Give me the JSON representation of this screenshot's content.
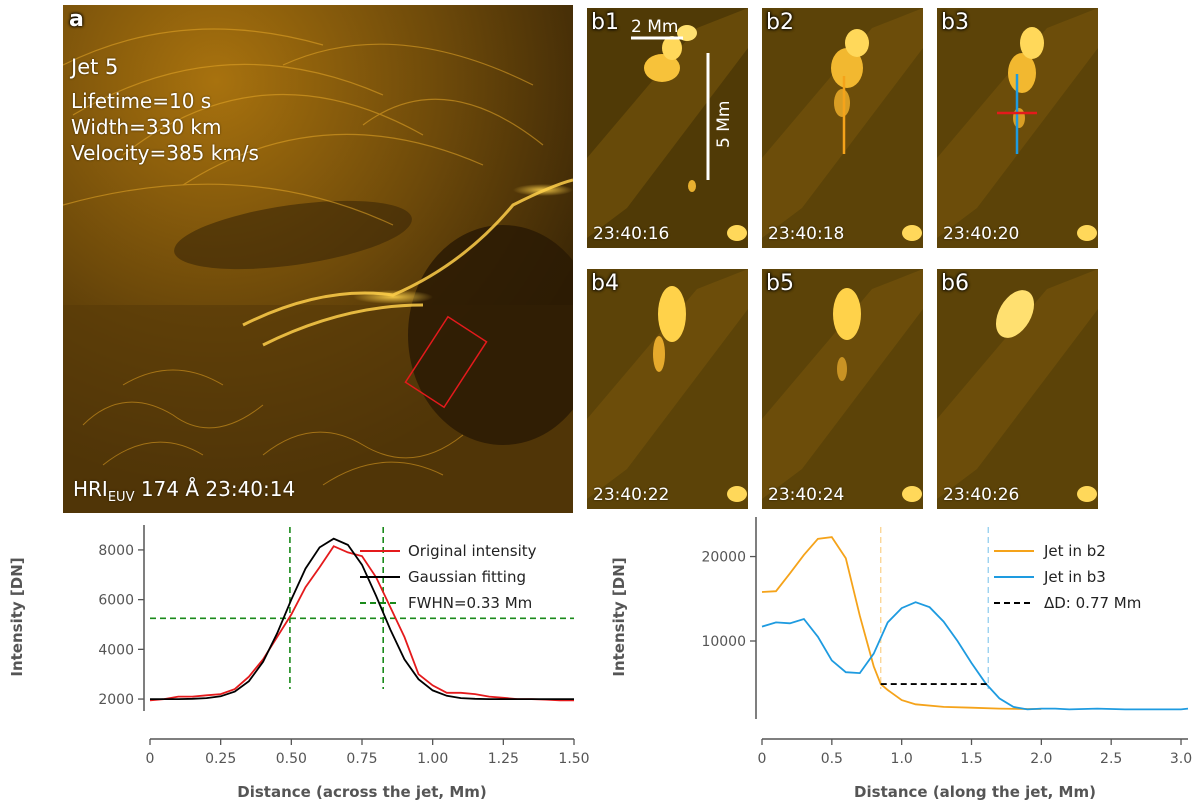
{
  "panel_a": {
    "label": "a",
    "title": "Jet 5",
    "lifetime": "Lifetime=10 s",
    "width": "Width=330 km",
    "velocity": "Velocity=385 km/s",
    "instrument_main": "HRI",
    "instrument_sub": "EUV",
    "instrument_rest": " 174 Å 23:40:14"
  },
  "thumbs": [
    {
      "label": "b1",
      "time": "23:40:16"
    },
    {
      "label": "b2",
      "time": "23:40:18"
    },
    {
      "label": "b3",
      "time": "23:40:20"
    },
    {
      "label": "b4",
      "time": "23:40:22"
    },
    {
      "label": "b5",
      "time": "23:40:24"
    },
    {
      "label": "b6",
      "time": "23:40:26"
    }
  ],
  "scalebars": {
    "horizontal": "2 Mm",
    "vertical": "5 Mm"
  },
  "colors": {
    "orange": "#f5a31a",
    "blue": "#1e9be0",
    "red": "#e41a1c",
    "green": "#1a8a1a",
    "black": "#000000",
    "solar": "#c98a12"
  },
  "chart_data": [
    {
      "type": "line",
      "xlabel": "Distance (across the jet, Mm)",
      "ylabel": "Intensity [DN]",
      "xlim": [
        0,
        1.5
      ],
      "ylim": [
        1600,
        8600
      ],
      "xticks": [
        "0",
        "0.25",
        "0.50",
        "0.75",
        "1.00",
        "1.25",
        "1.50"
      ],
      "yticks": [
        "2000",
        "4000",
        "6000",
        "8000"
      ],
      "series": [
        {
          "name": "Original intensity",
          "color": "red",
          "x": [
            0,
            0.05,
            0.1,
            0.15,
            0.2,
            0.25,
            0.3,
            0.35,
            0.4,
            0.45,
            0.5,
            0.55,
            0.6,
            0.65,
            0.7,
            0.75,
            0.8,
            0.85,
            0.9,
            0.95,
            1.0,
            1.05,
            1.1,
            1.15,
            1.2,
            1.25,
            1.3,
            1.35,
            1.4,
            1.45,
            1.5
          ],
          "y": [
            1950,
            2000,
            2100,
            2100,
            2150,
            2200,
            2400,
            2900,
            3600,
            4500,
            5400,
            6500,
            7300,
            8150,
            7900,
            7750,
            6900,
            5700,
            4500,
            3000,
            2550,
            2250,
            2250,
            2200,
            2100,
            2050,
            2000,
            2000,
            1980,
            1950,
            1950
          ]
        },
        {
          "name": "Gaussian fitting",
          "color": "black",
          "x": [
            0,
            0.05,
            0.1,
            0.15,
            0.2,
            0.25,
            0.3,
            0.35,
            0.4,
            0.45,
            0.5,
            0.55,
            0.6,
            0.65,
            0.7,
            0.75,
            0.8,
            0.85,
            0.9,
            0.95,
            1.0,
            1.05,
            1.1,
            1.15,
            1.2,
            1.25,
            1.3,
            1.35,
            1.4,
            1.45,
            1.5
          ],
          "y": [
            2000,
            2000,
            2000,
            2010,
            2040,
            2110,
            2300,
            2720,
            3500,
            4650,
            6000,
            7250,
            8100,
            8450,
            8200,
            7400,
            6150,
            4800,
            3600,
            2800,
            2350,
            2130,
            2040,
            2010,
            2000,
            2000,
            2000,
            2000,
            2000,
            2000,
            2000
          ]
        }
      ],
      "fwhm_label": "FWHN=0.33 Mm",
      "fwhm_level": 5250,
      "fwhm_x": [
        0.495,
        0.825
      ]
    },
    {
      "type": "line",
      "xlabel": "Distance (along the jet, Mm)",
      "ylabel": "Intensity [DN]",
      "xlim": [
        0,
        3.05
      ],
      "ylim": [
        1000,
        23500
      ],
      "xticks": [
        "0",
        "0.5",
        "1.0",
        "1.5",
        "2.0",
        "2.5",
        "3.0"
      ],
      "yticks": [
        "10000",
        "20000"
      ],
      "series": [
        {
          "name": "Jet in b2",
          "color": "orange",
          "x": [
            0,
            0.1,
            0.2,
            0.3,
            0.4,
            0.5,
            0.6,
            0.7,
            0.8,
            0.85,
            0.9,
            1.0,
            1.1,
            1.3,
            1.5,
            1.7,
            1.9,
            2.0
          ],
          "y": [
            15800,
            15900,
            18000,
            20200,
            22100,
            22300,
            19800,
            13000,
            7000,
            4900,
            4200,
            3000,
            2500,
            2200,
            2100,
            2000,
            1950,
            1950
          ]
        },
        {
          "name": "Jet in b3",
          "color": "blue",
          "x": [
            0,
            0.1,
            0.2,
            0.3,
            0.4,
            0.5,
            0.6,
            0.7,
            0.8,
            0.9,
            1.0,
            1.1,
            1.2,
            1.3,
            1.4,
            1.5,
            1.6,
            1.7,
            1.8,
            1.9,
            2.0,
            2.1,
            2.2,
            2.3,
            2.4,
            2.5,
            2.6,
            2.7,
            2.8,
            2.9,
            3.0,
            3.05
          ],
          "y": [
            11700,
            12200,
            12100,
            12600,
            10500,
            7700,
            6300,
            6200,
            8500,
            12200,
            13900,
            14600,
            14000,
            12300,
            10000,
            7400,
            5000,
            3200,
            2200,
            1900,
            2000,
            2000,
            1900,
            1950,
            2000,
            1950,
            1900,
            1900,
            1900,
            1900,
            1900,
            2000
          ]
        }
      ],
      "delta_label": "ΔD: 0.77 Mm",
      "delta_level": 4900,
      "delta_x": [
        0.85,
        1.62
      ]
    }
  ]
}
